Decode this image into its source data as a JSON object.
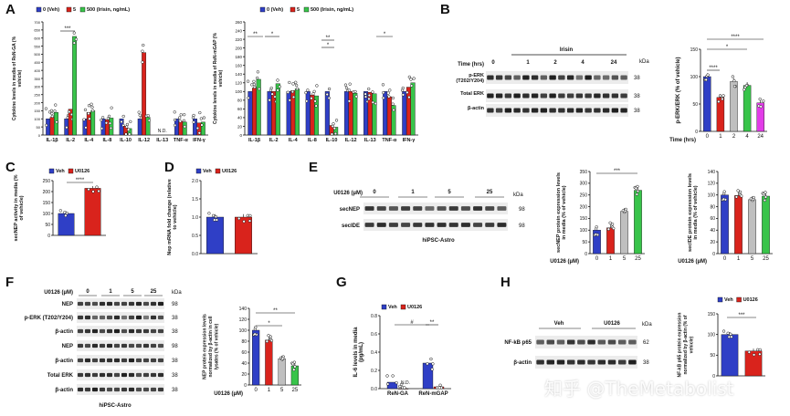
{
  "panels": {
    "A": {
      "label": "A",
      "legend": [
        "0 (Veh)",
        "5",
        "500 (Irisin, ng/mL)"
      ],
      "colors": [
        "#2f3fc6",
        "#d9231c",
        "#38c44a"
      ],
      "left": {
        "ylabel": "Cytokine levels in media of ReN-GA (% vehicle)",
        "yticks": [
          "0",
          "50",
          "100",
          "150",
          "200",
          "250",
          "300",
          "350",
          "400",
          "450",
          "500",
          "550",
          "600",
          "650",
          "700"
        ],
        "categories": [
          "IL-1β",
          "IL-2",
          "IL-4",
          "IL-8",
          "IL-10",
          "IL-12",
          "IL-13",
          "TNF-α",
          "IFN-γ"
        ],
        "nd_label": "N.D.",
        "sig": "***"
      },
      "right": {
        "ylabel": "Cytokine levels in media of ReN-mGAP (% vehicle)",
        "yticks": [
          "0",
          "20",
          "40",
          "60",
          "80",
          "100",
          "120",
          "140",
          "160",
          "180",
          "200",
          "220",
          "240",
          "260"
        ],
        "categories": [
          "IL-1β",
          "IL-2",
          "IL-4",
          "IL-8",
          "IL-10",
          "IL-12",
          "IL-13",
          "TNF-α",
          "IFN-γ"
        ],
        "sigs": [
          "**",
          "*",
          "**",
          "*",
          "*"
        ]
      }
    },
    "B": {
      "label": "B",
      "time_label": "Time (hrs)",
      "treatment": "Irisin",
      "times": [
        "0",
        "1",
        "2",
        "4",
        "24"
      ],
      "blots": [
        "p-ERK\n(T202/Y204)",
        "Total ERK",
        "β-actin"
      ],
      "kda_label": "kDa",
      "kda": [
        "38",
        "38",
        "38"
      ],
      "ylabel": "p-ERK/ERK (% of vehicle)",
      "yticks": [
        "0",
        "50",
        "100",
        "150"
      ],
      "xlabel": "Time (hrs)",
      "sigs": [
        "****",
        "*",
        "****"
      ],
      "colors": [
        "#2f3fc6",
        "#d9231c",
        "#bfbfbf",
        "#38c44a",
        "#e23ce8"
      ]
    },
    "C": {
      "label": "C",
      "legend": [
        "Veh",
        "U0126"
      ],
      "ylabel": "secNEP activity in media (% of vehicle)",
      "yticks": [
        "0",
        "50",
        "100",
        "150",
        "200",
        "250"
      ],
      "sig": "****"
    },
    "D": {
      "label": "D",
      "legend": [
        "Veh",
        "U0126"
      ],
      "ylabel": "Nep mRNA fold change (relative to vehicle)",
      "yticks": [
        "0.0",
        "0.5",
        "1.0",
        "1.5",
        "2.0"
      ]
    },
    "E": {
      "label": "E",
      "treatment": "U0126 (µM)",
      "doses": [
        "0",
        "1",
        "5",
        "25"
      ],
      "blots": [
        "secNEP",
        "secIDE"
      ],
      "kda_label": "kDa",
      "kda": [
        "98",
        "98"
      ],
      "cell": "hiPSC-Astro",
      "chart1_ylabel": "secNEP protein expression levels in media (% of vehicle)",
      "chart1_yticks": [
        "0",
        "50",
        "100",
        "150",
        "200",
        "250",
        "300",
        "350"
      ],
      "chart2_ylabel": "secIDE protein expression levels in media (% of vehicle)",
      "chart2_yticks": [
        "0",
        "20",
        "40",
        "60",
        "80",
        "100",
        "120",
        "140"
      ],
      "xlabel": "U0126 (µM)",
      "sig": "***",
      "colors": [
        "#2f3fc6",
        "#d9231c",
        "#bfbfbf",
        "#38c44a"
      ]
    },
    "F": {
      "label": "F",
      "treatment": "U0126 (µM)",
      "doses": [
        "0",
        "1",
        "5",
        "25"
      ],
      "blots": [
        "NEP",
        "p-ERK (T202/Y204)",
        "β-actin",
        "NEP",
        "β-actin",
        "Total ERK",
        "β-actin"
      ],
      "kda_label": "kDa",
      "kda": [
        "98",
        "38",
        "38",
        "98",
        "38",
        "38",
        "38"
      ],
      "cell": "hiPSC-Astro",
      "ylabel": "NEP protein expression levels normalized by β-actin in cell lysates (% of vehicle)",
      "yticks": [
        "0",
        "20",
        "40",
        "60",
        "80",
        "100",
        "120",
        "140"
      ],
      "xlabel": "U0126 (µM)",
      "sigs": [
        "**",
        "*"
      ],
      "colors": [
        "#2f3fc6",
        "#d9231c",
        "#bfbfbf",
        "#38c44a"
      ]
    },
    "G": {
      "label": "G",
      "legend": [
        "Veh",
        "U0126"
      ],
      "ylabel": "IL-6 levels in media (pg/mL)",
      "yticks": [
        "0.0",
        "0.2",
        "0.4",
        "0.6",
        "0.8"
      ],
      "categories": [
        "ReN-GA",
        "ReN-mGAP"
      ],
      "nd_label": "N.D.",
      "sigs": [
        "#",
        "**"
      ]
    },
    "H": {
      "label": "H",
      "treatments": [
        "Veh",
        "U0126"
      ],
      "blots": [
        "NF-kB p65",
        "β-actin"
      ],
      "kda_label": "kDa",
      "kda": [
        "62",
        "38"
      ],
      "legend": [
        "Veh",
        "U0126"
      ],
      "ylabel": "NF-kB p65 protein expression normalized by β-actin (% of vehicle)",
      "yticks": [
        "0",
        "50",
        "100",
        "150"
      ],
      "sig": "***"
    }
  },
  "chart_data": [
    {
      "type": "bar",
      "panel": "A-left",
      "ylim": [
        0,
        700
      ],
      "categories": [
        "IL-1β",
        "IL-2",
        "IL-4",
        "IL-8",
        "IL-10",
        "IL-12",
        "IL-13",
        "TNF-α",
        "IFN-γ"
      ],
      "series": [
        {
          "name": "0 (Veh)",
          "values": [
            100,
            100,
            100,
            100,
            100,
            100,
            null,
            100,
            100
          ]
        },
        {
          "name": "5",
          "values": [
            110,
            160,
            140,
            95,
            55,
            510,
            null,
            85,
            75
          ]
        },
        {
          "name": "500 (Irisin, ng/mL)",
          "values": [
            140,
            610,
            150,
            105,
            40,
            110,
            null,
            80,
            80
          ]
        }
      ]
    },
    {
      "type": "bar",
      "panel": "A-right",
      "ylim": [
        0,
        260
      ],
      "categories": [
        "IL-1β",
        "IL-2",
        "IL-4",
        "IL-8",
        "IL-10",
        "IL-12",
        "IL-13",
        "TNF-α",
        "IFN-γ"
      ],
      "series": [
        {
          "name": "0 (Veh)",
          "values": [
            100,
            100,
            100,
            100,
            100,
            100,
            100,
            100,
            100
          ]
        },
        {
          "name": "5",
          "values": [
            108,
            100,
            102,
            92,
            22,
            100,
            98,
            88,
            110
          ]
        },
        {
          "name": "500 (Irisin, ng/mL)",
          "values": [
            128,
            118,
            106,
            90,
            18,
            96,
            95,
            68,
            120
          ]
        }
      ]
    },
    {
      "type": "bar",
      "panel": "B",
      "ylim": [
        0,
        150
      ],
      "xlabel": "Time (hrs)",
      "categories": [
        "0",
        "1",
        "2",
        "4",
        "24"
      ],
      "values": [
        100,
        62,
        91,
        84,
        52
      ]
    },
    {
      "type": "bar",
      "panel": "C",
      "ylim": [
        0,
        250
      ],
      "categories": [
        "Veh",
        "U0126"
      ],
      "values": [
        100,
        215
      ]
    },
    {
      "type": "bar",
      "panel": "D",
      "ylim": [
        0,
        2.0
      ],
      "categories": [
        "Veh",
        "U0126"
      ],
      "values": [
        1.0,
        1.0
      ]
    },
    {
      "type": "bar",
      "panel": "E-secNEP",
      "ylim": [
        0,
        350
      ],
      "xlabel": "U0126 (µM)",
      "categories": [
        "0",
        "1",
        "5",
        "25"
      ],
      "values": [
        100,
        110,
        180,
        270
      ]
    },
    {
      "type": "bar",
      "panel": "E-secIDE",
      "ylim": [
        0,
        140
      ],
      "xlabel": "U0126 (µM)",
      "categories": [
        "0",
        "1",
        "5",
        "25"
      ],
      "values": [
        100,
        99,
        92,
        98
      ]
    },
    {
      "type": "bar",
      "panel": "F",
      "ylim": [
        0,
        140
      ],
      "xlabel": "U0126 (µM)",
      "categories": [
        "0",
        "1",
        "5",
        "25"
      ],
      "values": [
        100,
        82,
        48,
        35
      ]
    },
    {
      "type": "bar",
      "panel": "G",
      "ylim": [
        0,
        0.8
      ],
      "categories": [
        "ReN-GA",
        "ReN-mGAP"
      ],
      "series": [
        {
          "name": "Veh",
          "values": [
            0.07,
            0.28
          ]
        },
        {
          "name": "U0126",
          "values": [
            0.0,
            0.02
          ]
        }
      ]
    },
    {
      "type": "bar",
      "panel": "H",
      "ylim": [
        0,
        150
      ],
      "categories": [
        "Veh",
        "U0126"
      ],
      "values": [
        100,
        60
      ]
    }
  ],
  "watermark": "知乎 @TheMetabolist"
}
